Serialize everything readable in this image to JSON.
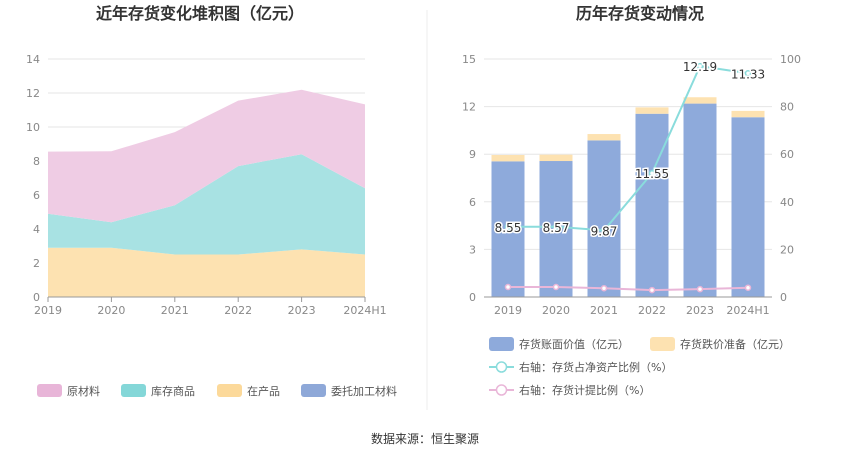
{
  "source_label": "数据来源：恒生聚源",
  "chart_data": [
    {
      "type": "area",
      "stacked": true,
      "title": "近年存货变化堆积图（亿元）",
      "categories": [
        "2019",
        "2020",
        "2021",
        "2022",
        "2023",
        "2024H1"
      ],
      "ylim": [
        0,
        14
      ],
      "yticks": [
        "0",
        "2",
        "4",
        "6",
        "8",
        "10",
        "12",
        "14"
      ],
      "grid": true,
      "legend_position": "bottom",
      "series": [
        {
          "name": "委托加工材料",
          "color": "#8ea8d8",
          "values": [
            0,
            0,
            0,
            0,
            0,
            0
          ]
        },
        {
          "name": "在产品",
          "color": "#fde2b1",
          "values": [
            2.9,
            2.9,
            2.5,
            2.5,
            2.8,
            2.5
          ]
        },
        {
          "name": "库存商品",
          "color": "#a8e2e3",
          "values": [
            2.0,
            1.5,
            2.9,
            5.2,
            5.6,
            3.9
          ]
        },
        {
          "name": "原材料",
          "color": "#efcce4",
          "values": [
            3.65,
            4.17,
            4.3,
            3.85,
            3.79,
            4.93
          ]
        }
      ],
      "legend_order": [
        "原材料",
        "库存商品",
        "在产品",
        "委托加工材料"
      ],
      "legend_colors": {
        "原材料": "#e8b5d8",
        "库存商品": "#84d7d8",
        "在产品": "#fcd99a",
        "委托加工材料": "#8ea8d8"
      }
    },
    {
      "type": "bar",
      "stacked": true,
      "title": "历年存货变动情况",
      "categories": [
        "2019",
        "2020",
        "2021",
        "2022",
        "2023",
        "2024H1"
      ],
      "ylim_left": [
        0,
        15
      ],
      "yticks_left": [
        "0",
        "3",
        "6",
        "9",
        "12",
        "15"
      ],
      "ylim_right": [
        0,
        100
      ],
      "yticks_right": [
        "0",
        "20",
        "40",
        "60",
        "80",
        "100"
      ],
      "grid": true,
      "legend_position": "bottom",
      "series": [
        {
          "name": "存货账面价值（亿元）",
          "type": "bar",
          "axis": "left",
          "color": "#8eaadb",
          "values": [
            8.55,
            8.57,
            9.87,
            11.55,
            12.19,
            11.33
          ],
          "data_labels": [
            "8.55",
            "8.57",
            "9.87",
            "11.55",
            "12.19",
            "11.33"
          ]
        },
        {
          "name": "存货跌价准备（亿元）",
          "type": "bar",
          "axis": "left",
          "color": "#fde2b1",
          "values": [
            0.4,
            0.4,
            0.4,
            0.4,
            0.4,
            0.4
          ]
        },
        {
          "name": "右轴：存货占净资产比例（%）",
          "type": "line",
          "axis": "right",
          "color": "#8adcdc",
          "values": [
            29.5,
            29.5,
            28,
            52,
            97,
            94
          ]
        },
        {
          "name": "右轴：存货计提比例（%）",
          "type": "line",
          "axis": "right",
          "color": "#e9b6d8",
          "values": [
            4.2,
            4.2,
            3.7,
            2.9,
            3.3,
            3.9
          ]
        }
      ]
    }
  ]
}
